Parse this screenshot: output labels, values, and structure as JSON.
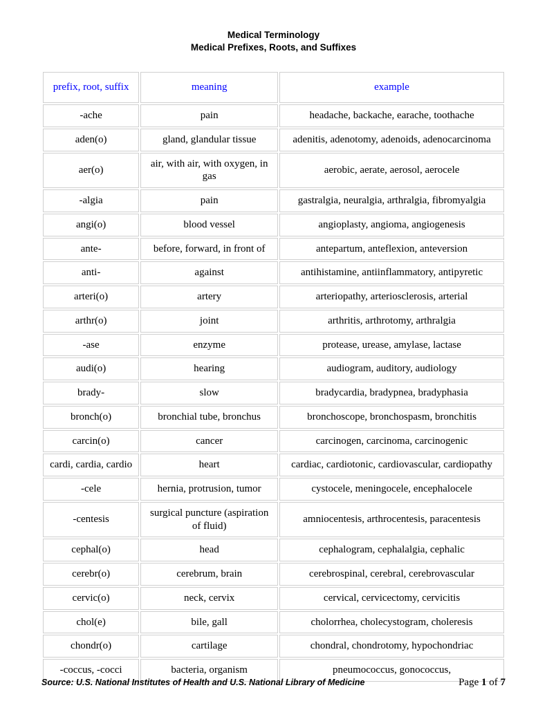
{
  "title": {
    "line1": "Medical Terminology",
    "line2": "Medical Prefixes, Roots, and Suffixes"
  },
  "table": {
    "headers": [
      "prefix, root, suffix",
      "meaning",
      "example"
    ],
    "header_color": "#0000ff",
    "border_color": "#cfcfcf",
    "cell_fontsize": 15,
    "col_widths_pct": [
      21,
      30,
      49
    ],
    "rows": [
      [
        "-ache",
        "pain",
        "headache, backache, earache, toothache"
      ],
      [
        "aden(o)",
        "gland, glandular tissue",
        "adenitis, adenotomy, adenoids, adenocarcinoma"
      ],
      [
        "aer(o)",
        "air, with air, with oxygen, in gas",
        "aerobic, aerate, aerosol, aerocele"
      ],
      [
        "-algia",
        "pain",
        "gastralgia, neuralgia, arthralgia, fibromyalgia"
      ],
      [
        "angi(o)",
        "blood vessel",
        "angioplasty, angioma, angiogenesis"
      ],
      [
        "ante-",
        "before, forward, in front of",
        "antepartum, anteflexion, anteversion"
      ],
      [
        "anti-",
        "against",
        "antihistamine, antiinflammatory, antipyretic"
      ],
      [
        "arteri(o)",
        "artery",
        "arteriopathy, arteriosclerosis, arterial"
      ],
      [
        "arthr(o)",
        "joint",
        "arthritis, arthrotomy, arthralgia"
      ],
      [
        "-ase",
        "enzyme",
        "protease, urease, amylase, lactase"
      ],
      [
        "audi(o)",
        "hearing",
        "audiogram, auditory, audiology"
      ],
      [
        "brady-",
        "slow",
        "bradycardia, bradypnea, bradyphasia"
      ],
      [
        "bronch(o)",
        "bronchial tube, bronchus",
        "bronchoscope, bronchospasm, bronchitis"
      ],
      [
        "carcin(o)",
        "cancer",
        "carcinogen, carcinoma, carcinogenic"
      ],
      [
        "cardi, cardia, cardio",
        "heart",
        "cardiac, cardiotonic, cardiovascular, cardiopathy"
      ],
      [
        "-cele",
        "hernia, protrusion, tumor",
        "cystocele, meningocele, encephalocele"
      ],
      [
        "-centesis",
        "surgical puncture (aspiration of fluid)",
        "amniocentesis, arthrocentesis, paracentesis"
      ],
      [
        "cephal(o)",
        "head",
        "cephalogram, cephalalgia, cephalic"
      ],
      [
        "cerebr(o)",
        "cerebrum, brain",
        "cerebrospinal, cerebral, cerebrovascular"
      ],
      [
        "cervic(o)",
        "neck, cervix",
        "cervical, cervicectomy, cervicitis"
      ],
      [
        "chol(e)",
        "bile, gall",
        "cholorrhea, cholecystogram, choleresis"
      ],
      [
        "chondr(o)",
        "cartilage",
        "chondral, chondrotomy, hypochondriac"
      ],
      [
        "-coccus, -cocci",
        "bacteria, organism",
        "pneumococcus, gonococcus,"
      ]
    ]
  },
  "footer": {
    "source": "Source: U.S. National Institutes of Health and U.S. National Library of Medicine",
    "page_prefix": "Page ",
    "page_current": "1",
    "page_mid": " of ",
    "page_total": "7"
  },
  "style": {
    "background_color": "#ffffff",
    "title_font": "Arial",
    "title_fontsize": 13.5,
    "body_font": "Times New Roman"
  }
}
